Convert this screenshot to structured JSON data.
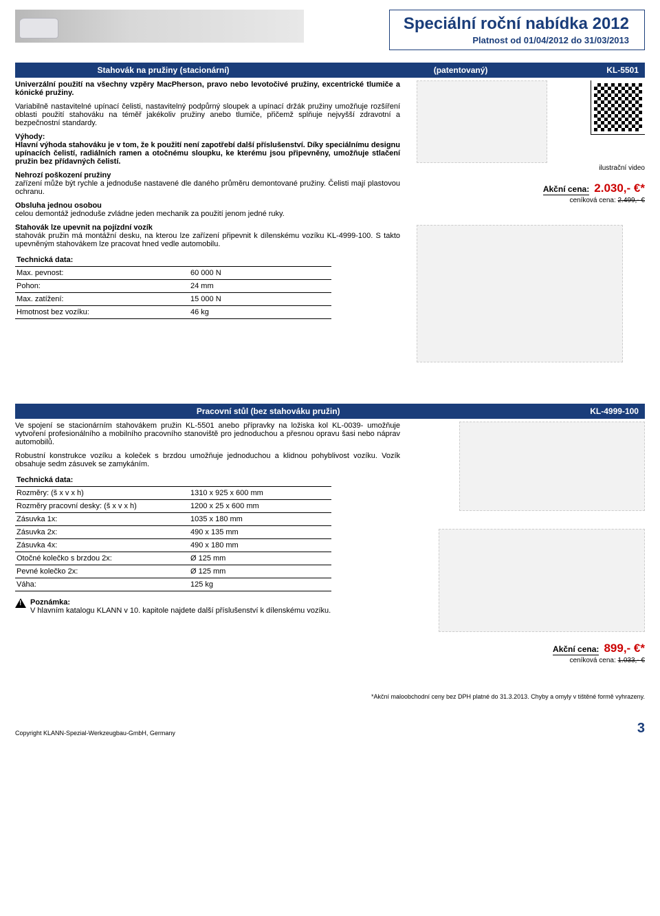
{
  "header": {
    "title": "Speciální roční nabídka 2012",
    "validity": "Platnost od 01/04/2012 do 31/03/2013"
  },
  "article1": {
    "bar_title": "Stahovák na pružiny (stacionární)",
    "bar_center": "(patentovaný)",
    "bar_code": "KL-5501",
    "lead": "Univerzální použití na všechny vzpěry MacPherson, pravo nebo levotočivé pružiny, excentrické tlumiče a kónické pružiny.",
    "p1": "Variabilně nastavitelné upínací čelisti, nastavitelný podpůrný sloupek a upínací držák pružiny umožňuje rozšíření oblasti použití stahováku na téměř jakékoliv pružiny anebo tlumiče, přičemž splňuje nejvyšší zdravotní a bezpečnostní standardy.",
    "adv_head": "Výhody:",
    "adv_body": "Hlavní výhoda stahováku je v tom, že k použití není zapotřebí další příslušenství. Díky speciálnímu designu upínacích čelistí, radiálních ramen a otočnému sloupku, ke kterému jsou připevněny, umožňuje stlačení pružin bez přídavných čelistí.",
    "p2h": "Nehrozí poškození pružiny",
    "p2": "zařízení může být rychle a jednoduše nastavené dle daného průměru demontované pružiny. Čelisti mají plastovou ochranu.",
    "p3h": "Obsluha jednou osobou",
    "p3": "celou demontáž jednoduše zvládne jeden mechanik za použití jenom jedné ruky.",
    "p4h": "Stahovák lze upevnit na pojízdní vozík",
    "p4": "stahovák pružin má montážní desku, na kterou lze zařízení připevnit k dílenskému vozíku KL-4999-100. S takto upevněným stahovákem lze pracovat hned vedle automobilu.",
    "tech_head": "Technická data:",
    "tech_rows": [
      [
        "Max. pevnost:",
        "60 000 N"
      ],
      [
        "Pohon:",
        "24 mm"
      ],
      [
        "Max. zatížení:",
        "15 000 N"
      ],
      [
        "Hmotnost bez vozíku:",
        "46 kg"
      ]
    ],
    "qr_caption": "ilustrační video",
    "price_label": "Akční cena:",
    "price_value": "2.030,- €*",
    "list_label": "ceníková cena:",
    "list_value": "2.499,- €"
  },
  "article2": {
    "bar_title": "Pracovní stůl (bez stahováku pružin)",
    "bar_code": "KL-4999-100",
    "p1": "Ve spojení se stacionárním stahovákem pružin KL-5501 anebo přípravky na ložiska kol KL-0039- umožňuje vytvoření profesionálního a mobilního pracovního stanoviště pro jednoduchou a přesnou opravu šasi nebo náprav automobilů.",
    "p2": "Robustní konstrukce vozíku a koleček s brzdou umožňuje jednoduchou a klidnou pohyblivost vozíku. Vozík obsahuje sedm zásuvek se zamykáním.",
    "tech_head": "Technická data:",
    "tech_rows": [
      [
        "Rozměry: (š x v x h)",
        "1310 x 925 x 600 mm"
      ],
      [
        "Rozměry pracovní desky: (š x v x h)",
        "1200 x 25 x 600 mm"
      ],
      [
        "Zásuvka 1x:",
        "1035 x 180 mm"
      ],
      [
        "Zásuvka 2x:",
        "490 x 135 mm"
      ],
      [
        "Zásuvka 4x:",
        "490 x 180 mm"
      ],
      [
        "Otočné kolečko s brzdou 2x:",
        "Ø 125 mm"
      ],
      [
        "Pevné kolečko 2x:",
        "Ø 125 mm"
      ],
      [
        "Váha:",
        "125 kg"
      ]
    ],
    "note_head": "Poznámka:",
    "note_body": "V hlavním katalogu KLANN v 10. kapitole najdete další příslušenství k dílenskému vozíku.",
    "price_label": "Akční cena:",
    "price_value": "899,- €*",
    "list_label": "ceníková cena:",
    "list_value": "1.033,- €"
  },
  "footer": {
    "disclaimer": "*Akční maloobchodní ceny bez DPH platné do 31.3.2013. Chyby a omyly v tištěné formě vyhrazeny.",
    "copyright": "Copyright KLANN-Spezial-Werkzeugbau-GmbH, Germany",
    "page": "3"
  },
  "colors": {
    "brand_blue": "#1a3d7a",
    "price_red": "#c00"
  }
}
